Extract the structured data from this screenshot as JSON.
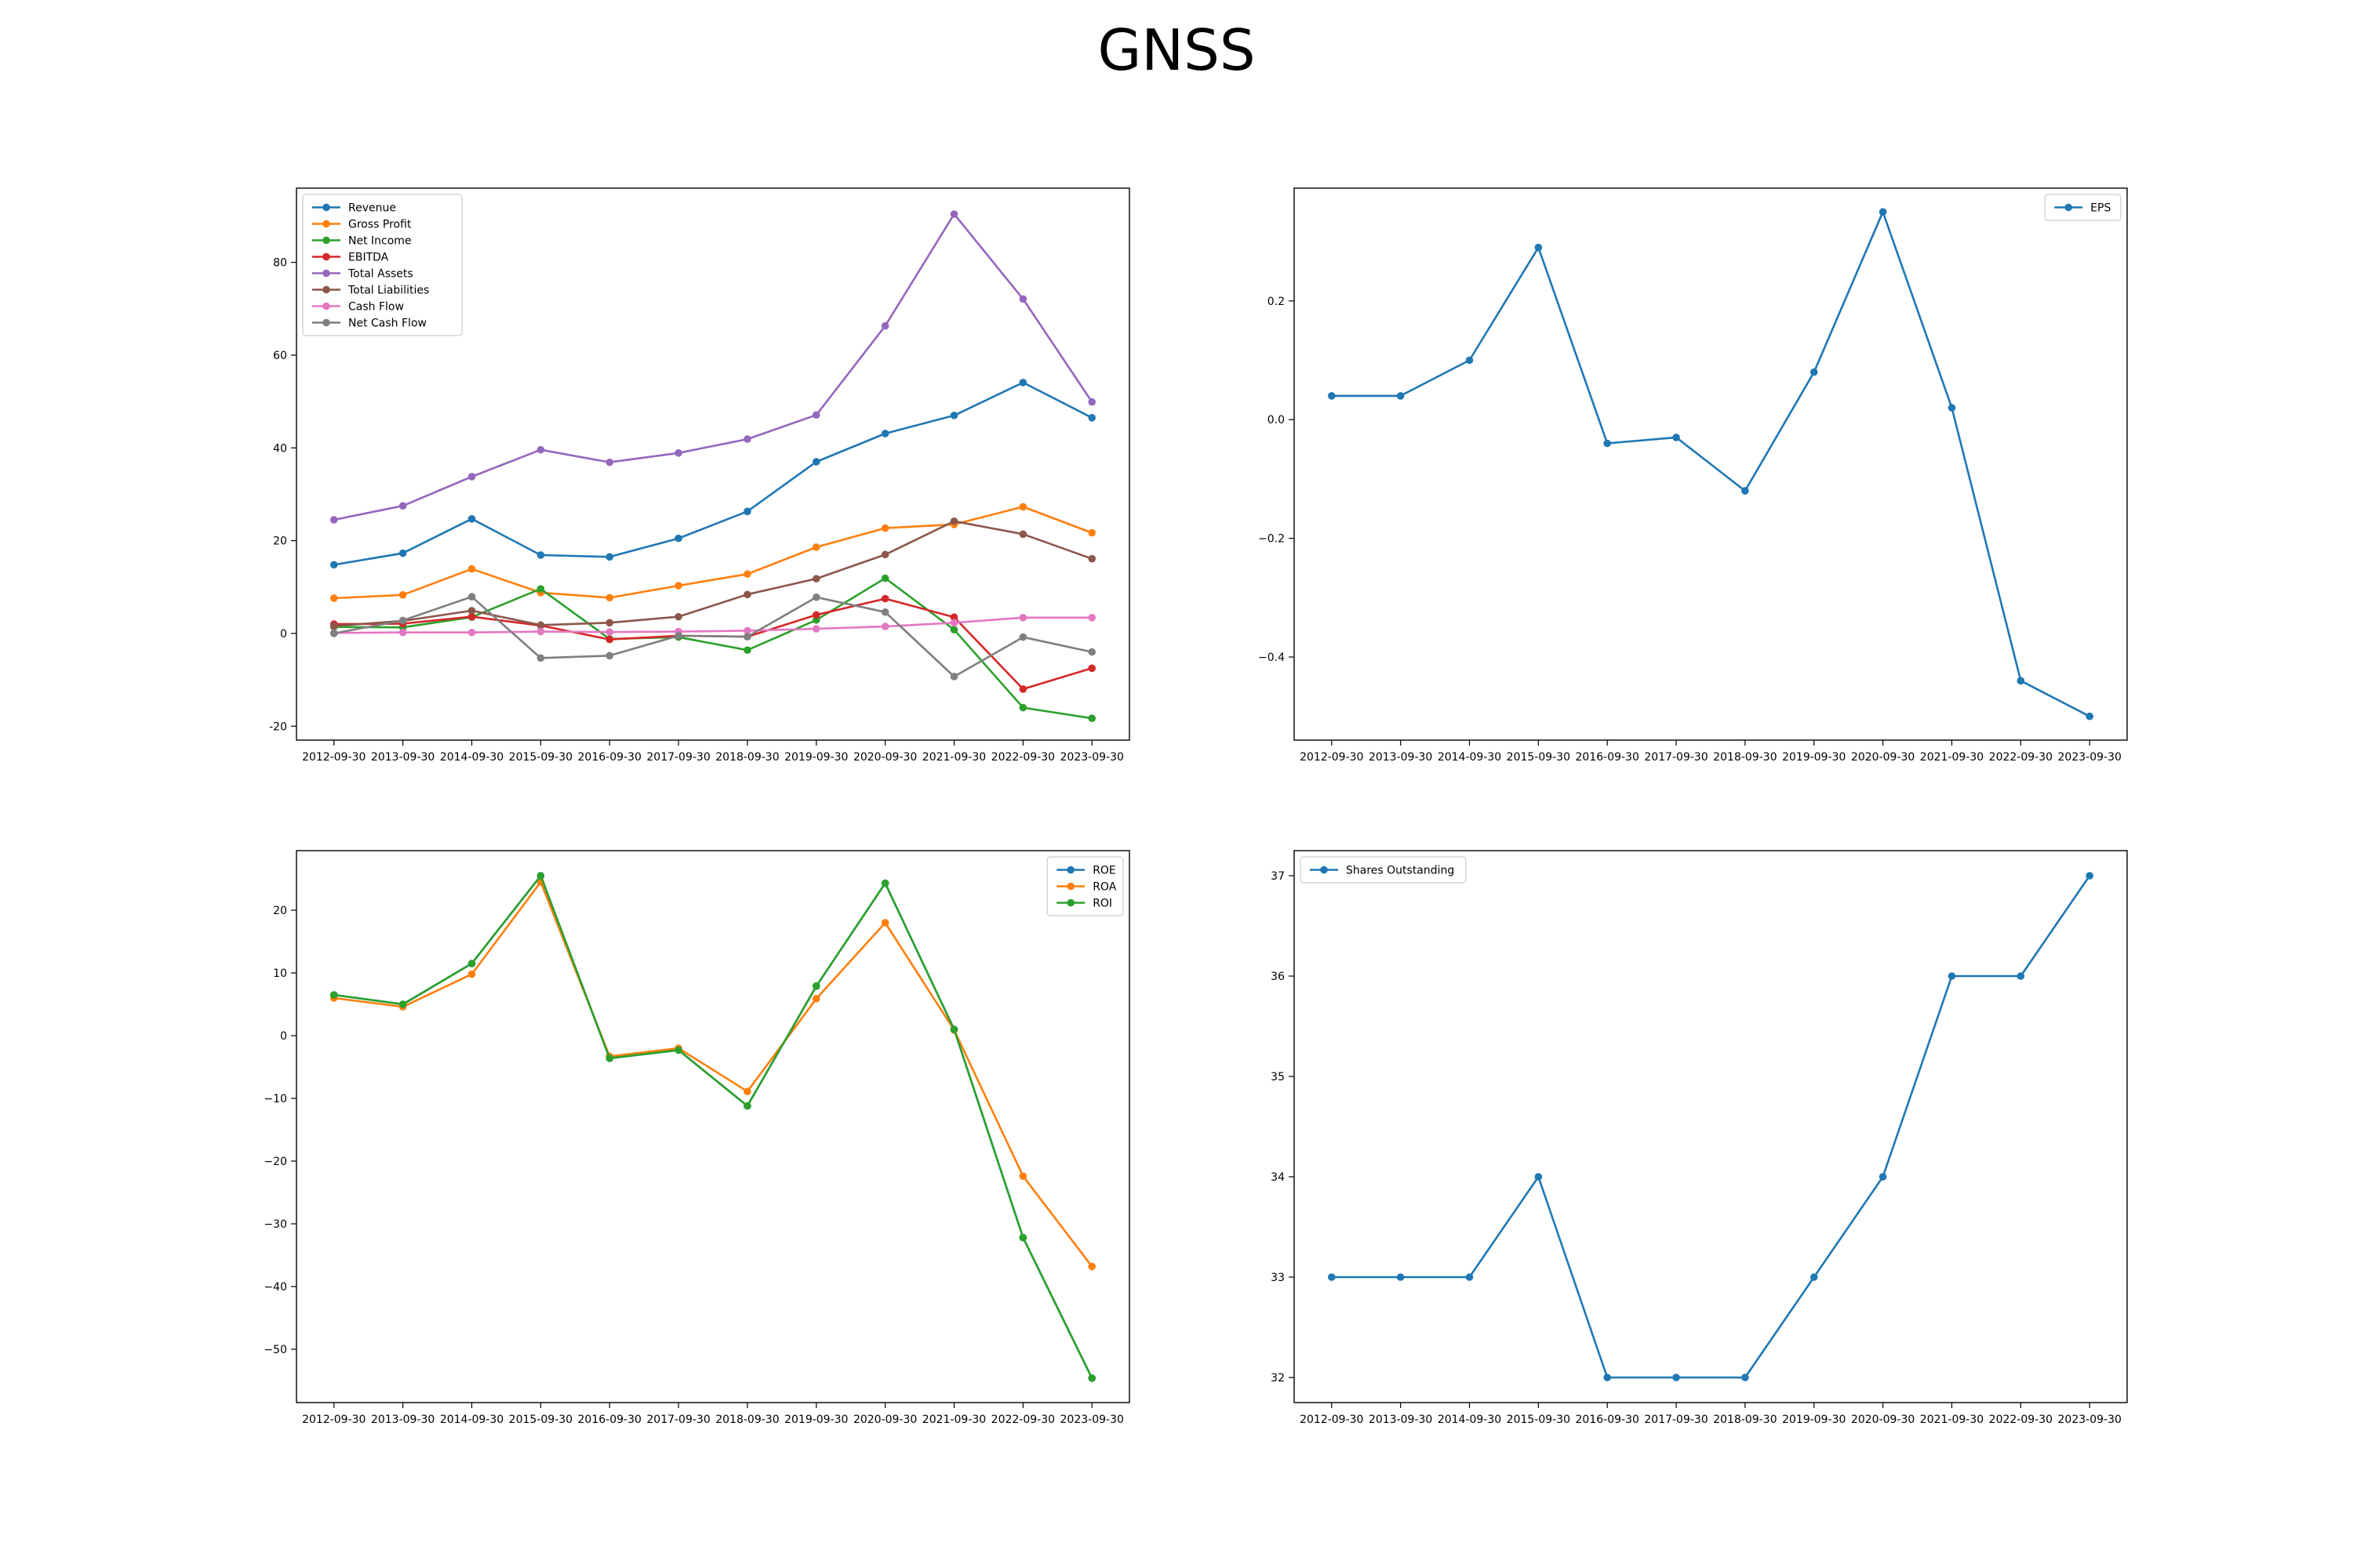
{
  "title": "GNSS",
  "colors": {
    "blue": "#1f77b4",
    "orange": "#ff7f0e",
    "green": "#2ca02c",
    "red": "#d62728",
    "purple": "#9467bd",
    "brown": "#8c564b",
    "pink": "#e377c2",
    "gray": "#7f7f7f"
  },
  "chart_data": [
    {
      "id": "financials",
      "type": "line",
      "title": "",
      "xlabel": "",
      "ylabel": "",
      "ylim": [
        -23,
        96
      ],
      "yticks": [
        -20,
        0,
        20,
        40,
        60,
        80
      ],
      "legend": "top-left",
      "grid": false,
      "x": [
        "2012-09-30",
        "2013-09-30",
        "2014-09-30",
        "2015-09-30",
        "2016-09-30",
        "2017-09-30",
        "2018-09-30",
        "2019-09-30",
        "2020-09-30",
        "2021-09-30",
        "2022-09-30",
        "2023-09-30"
      ],
      "series": [
        {
          "name": "Revenue",
          "color": "#1f77b4",
          "values": [
            14.8,
            17.3,
            24.7,
            16.9,
            16.5,
            20.5,
            26.3,
            37.0,
            43.1,
            47.0,
            54.1,
            46.5
          ]
        },
        {
          "name": "Gross Profit",
          "color": "#ff7f0e",
          "values": [
            7.6,
            8.3,
            13.9,
            8.8,
            7.7,
            10.3,
            12.8,
            18.6,
            22.7,
            23.5,
            27.3,
            21.7
          ]
        },
        {
          "name": "Net Income",
          "color": "#2ca02c",
          "values": [
            1.4,
            1.3,
            3.5,
            9.6,
            -1.2,
            -0.8,
            -3.6,
            2.9,
            11.9,
            0.8,
            -16.0,
            -18.3
          ]
        },
        {
          "name": "EBITDA",
          "color": "#d62728",
          "values": [
            2.0,
            2.1,
            3.6,
            1.7,
            -1.3,
            -0.5,
            -0.7,
            4.0,
            7.5,
            3.5,
            -12.0,
            -7.5
          ]
        },
        {
          "name": "Total Assets",
          "color": "#9467bd",
          "values": [
            24.5,
            27.5,
            33.8,
            39.6,
            36.9,
            38.9,
            41.9,
            47.1,
            66.3,
            90.4,
            72.1,
            49.9
          ]
        },
        {
          "name": "Total Liabilities",
          "color": "#8c564b",
          "values": [
            1.6,
            2.7,
            4.9,
            1.8,
            2.3,
            3.6,
            8.4,
            11.8,
            17.0,
            24.2,
            21.4,
            16.1
          ]
        },
        {
          "name": "Cash Flow",
          "color": "#e377c2",
          "values": [
            0.1,
            0.2,
            0.2,
            0.4,
            0.3,
            0.4,
            0.6,
            1.0,
            1.5,
            2.3,
            3.4,
            3.4
          ]
        },
        {
          "name": "Net Cash Flow",
          "color": "#7f7f7f",
          "values": [
            0.0,
            2.8,
            7.9,
            -5.3,
            -4.8,
            -0.5,
            -0.7,
            7.8,
            4.6,
            -9.3,
            -0.8,
            -4.0
          ]
        }
      ]
    },
    {
      "id": "eps",
      "type": "line",
      "title": "",
      "xlabel": "",
      "ylabel": "",
      "ylim": [
        -0.54,
        0.39
      ],
      "yticks": [
        -0.4,
        -0.2,
        0.0,
        0.2
      ],
      "ytick_labels": [
        "−0.4",
        "−0.2",
        "0.0",
        "0.2"
      ],
      "legend": "top-right",
      "grid": false,
      "x": [
        "2012-09-30",
        "2013-09-30",
        "2014-09-30",
        "2015-09-30",
        "2016-09-30",
        "2017-09-30",
        "2018-09-30",
        "2019-09-30",
        "2020-09-30",
        "2021-09-30",
        "2022-09-30",
        "2023-09-30"
      ],
      "series": [
        {
          "name": "EPS",
          "color": "#1f77b4",
          "values": [
            0.04,
            0.04,
            0.1,
            0.29,
            -0.04,
            -0.03,
            -0.12,
            0.08,
            0.35,
            0.02,
            -0.44,
            -0.5
          ]
        }
      ]
    },
    {
      "id": "returns",
      "type": "line",
      "title": "",
      "xlabel": "",
      "ylabel": "",
      "ylim": [
        -58.5,
        29.5
      ],
      "yticks": [
        -50,
        -40,
        -30,
        -20,
        -10,
        0,
        10,
        20
      ],
      "ytick_labels": [
        "−50",
        "−40",
        "−30",
        "−20",
        "−10",
        "0",
        "10",
        "20"
      ],
      "legend": "top-right",
      "grid": false,
      "x": [
        "2012-09-30",
        "2013-09-30",
        "2014-09-30",
        "2015-09-30",
        "2016-09-30",
        "2017-09-30",
        "2018-09-30",
        "2019-09-30",
        "2020-09-30",
        "2021-09-30",
        "2022-09-30",
        "2023-09-30"
      ],
      "series": [
        {
          "name": "ROE",
          "color": "#1f77b4",
          "values": [
            6.5,
            5.0,
            11.5,
            25.5,
            -3.6,
            -2.3,
            -11.2,
            7.9,
            24.3,
            1.0,
            -32.2,
            -54.6
          ]
        },
        {
          "name": "ROA",
          "color": "#ff7f0e",
          "values": [
            6.0,
            4.6,
            9.8,
            24.5,
            -3.3,
            -2.0,
            -8.9,
            5.9,
            18.0,
            0.9,
            -22.4,
            -36.8
          ]
        },
        {
          "name": "ROI",
          "color": "#2ca02c",
          "values": [
            6.5,
            5.0,
            11.5,
            25.5,
            -3.6,
            -2.3,
            -11.2,
            7.9,
            24.3,
            1.0,
            -32.2,
            -54.6
          ]
        }
      ]
    },
    {
      "id": "shares",
      "type": "line",
      "title": "",
      "xlabel": "",
      "ylabel": "",
      "ylim": [
        31.75,
        37.25
      ],
      "yticks": [
        32,
        33,
        34,
        35,
        36,
        37
      ],
      "legend": "top-left",
      "grid": false,
      "x": [
        "2012-09-30",
        "2013-09-30",
        "2014-09-30",
        "2015-09-30",
        "2016-09-30",
        "2017-09-30",
        "2018-09-30",
        "2019-09-30",
        "2020-09-30",
        "2021-09-30",
        "2022-09-30",
        "2023-09-30"
      ],
      "series": [
        {
          "name": "Shares Outstanding",
          "color": "#1f77b4",
          "values": [
            33,
            33,
            33,
            34,
            32,
            32,
            32,
            33,
            34,
            36,
            36,
            37
          ]
        }
      ]
    }
  ]
}
